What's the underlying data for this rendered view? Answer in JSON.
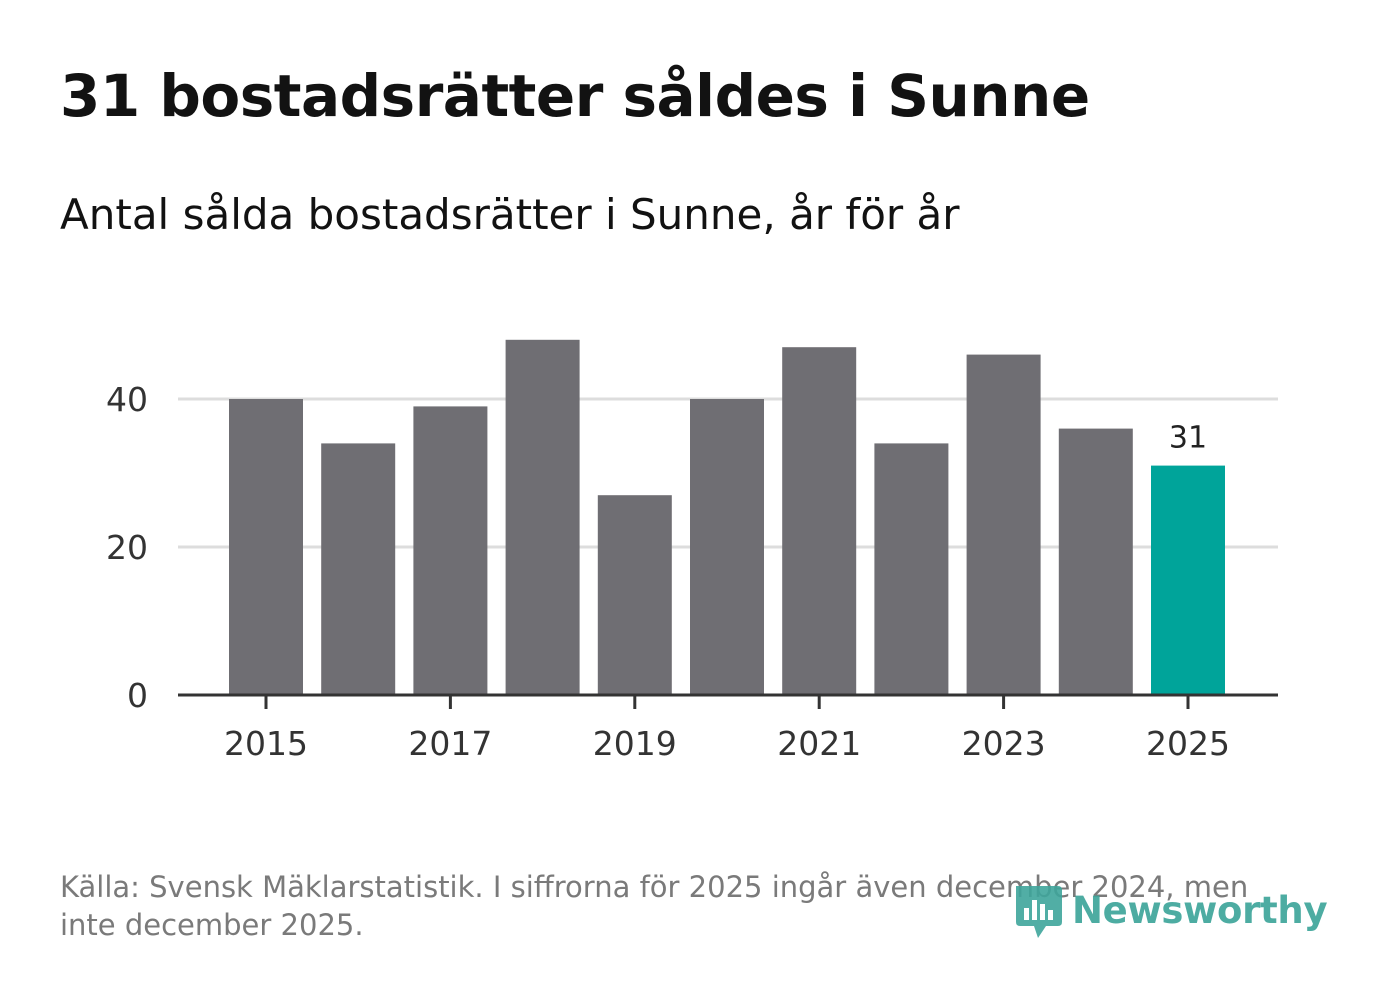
{
  "title": "31 bostadsrätter såldes i Sunne",
  "subtitle": "Antal sålda bostadsrätter i Sunne, år för år",
  "source": "Källa: Svensk Mäklarstatistik. I siffrorna för 2025 ingår även december 2024, men inte december 2025.",
  "brand": {
    "name": "Newsworthy",
    "color": "#3ea59b"
  },
  "colors": {
    "bar": "#6f6e73",
    "highlight": "#00a49a",
    "grid": "#dddddd",
    "axis": "#333333"
  },
  "chart_data": {
    "type": "bar",
    "title": "31 bostadsrätter såldes i Sunne",
    "subtitle": "Antal sålda bostadsrätter i Sunne, år för år",
    "xlabel": "",
    "ylabel": "",
    "categories": [
      "2015",
      "2016",
      "2017",
      "2018",
      "2019",
      "2020",
      "2021",
      "2022",
      "2023",
      "2024",
      "2025"
    ],
    "values": [
      40,
      34,
      39,
      48,
      27,
      40,
      47,
      34,
      46,
      36,
      31
    ],
    "highlight_index": 10,
    "highlight_label": "31",
    "ylim": [
      0,
      55
    ],
    "yticks": [
      0,
      20,
      40
    ],
    "xtick_labels": [
      "2015",
      "2017",
      "2019",
      "2021",
      "2023",
      "2025"
    ],
    "grid": true
  }
}
